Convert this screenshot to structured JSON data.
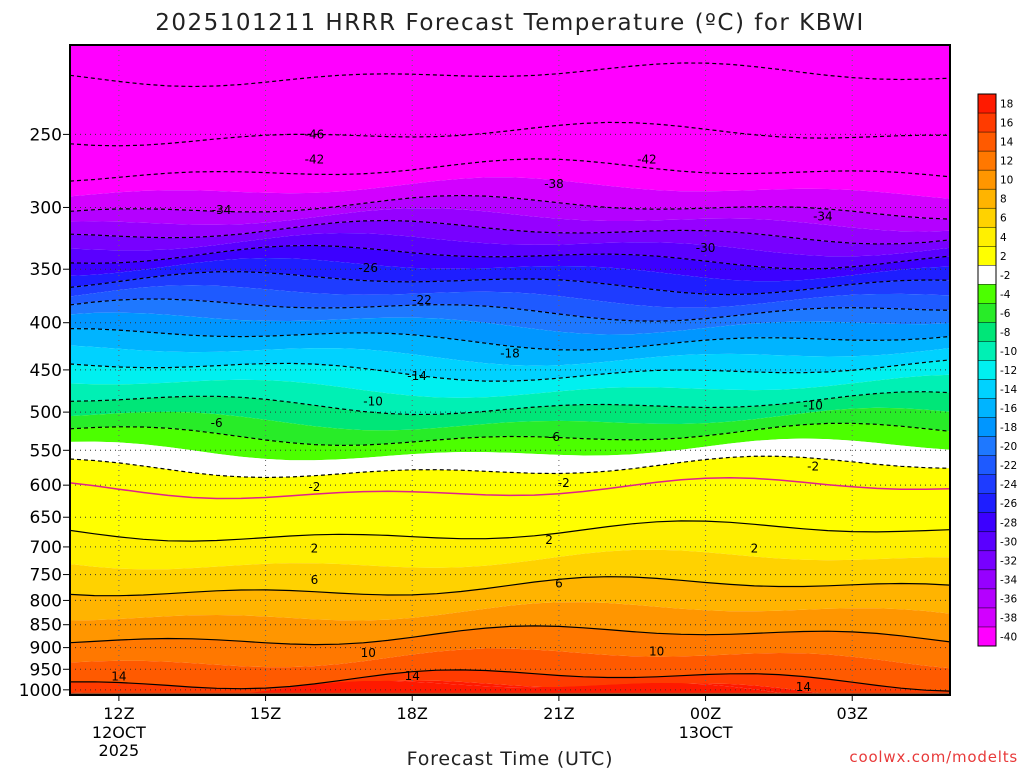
{
  "chart_data": {
    "type": "heatmap",
    "title": "2025101211 HRRR Forecast Temperature (ºC) for KBWI",
    "xlabel": "Forecast Time (UTC)",
    "ylabel": "",
    "credit": "coolwx.com/modelts",
    "x_hours": [
      0,
      3,
      6,
      9,
      12,
      15
    ],
    "x_ticks": [
      {
        "label": "12Z",
        "sub1": "12OCT",
        "sub2": "2025"
      },
      {
        "label": "15Z",
        "sub1": "",
        "sub2": ""
      },
      {
        "label": "18Z",
        "sub1": "",
        "sub2": ""
      },
      {
        "label": "21Z",
        "sub1": "",
        "sub2": ""
      },
      {
        "label": "00Z",
        "sub1": "13OCT",
        "sub2": ""
      },
      {
        "label": "03Z",
        "sub1": "",
        "sub2": ""
      }
    ],
    "y_ticks": [
      250,
      300,
      350,
      400,
      450,
      500,
      550,
      600,
      650,
      700,
      750,
      800,
      850,
      900,
      950,
      1000
    ],
    "y_range_hpa": [
      200,
      1013
    ],
    "y_scale": "log-pressure",
    "x_range_hours": [
      -1,
      17
    ],
    "colorbar": {
      "levels": [
        "18",
        "16",
        "14",
        "12",
        "10",
        "8",
        "6",
        "4",
        "2",
        "-2",
        "-4",
        "-6",
        "-8",
        "-10",
        "-12",
        "-14",
        "-16",
        "-18",
        "-20",
        "-22",
        "-24",
        "-26",
        "-28",
        "-30",
        "-32",
        "-34",
        "-36",
        "-38",
        "-40"
      ],
      "colors": [
        "#ff1a00",
        "#ff3b00",
        "#ff5a00",
        "#ff7800",
        "#ff9600",
        "#ffb400",
        "#ffd200",
        "#fff000",
        "#ffff00",
        "#ffffff",
        "#4cff00",
        "#28ec28",
        "#00e678",
        "#00f0b4",
        "#00f0f0",
        "#00d2ff",
        "#00b4ff",
        "#0096ff",
        "#1e78ff",
        "#1e5aff",
        "#1e3cff",
        "#1e1eff",
        "#3c00ff",
        "#5a00ff",
        "#7800ff",
        "#9600ff",
        "#b400ff",
        "#d200ff",
        "#ff00ff"
      ]
    },
    "profile_hpa": [
      200,
      250,
      300,
      350,
      400,
      450,
      500,
      550,
      600,
      650,
      700,
      750,
      800,
      850,
      900,
      950,
      1000
    ],
    "profile_temp_c": [
      -52,
      -46,
      -38,
      -28,
      -20,
      -14,
      -9,
      -4,
      0,
      1,
      3,
      5,
      7,
      9,
      11,
      13,
      15
    ],
    "contour_labels": [
      {
        "value": "-46",
        "hour": 4.0,
        "hpa": 250
      },
      {
        "value": "-42",
        "hour": 4.0,
        "hpa": 266
      },
      {
        "value": "-42",
        "hour": 10.8,
        "hpa": 266
      },
      {
        "value": "-38",
        "hour": 8.9,
        "hpa": 283
      },
      {
        "value": "-34",
        "hour": 2.1,
        "hpa": 302
      },
      {
        "value": "-34",
        "hour": 14.4,
        "hpa": 307
      },
      {
        "value": "-30",
        "hour": 12.0,
        "hpa": 332
      },
      {
        "value": "-26",
        "hour": 5.1,
        "hpa": 349
      },
      {
        "value": "-22",
        "hour": 6.2,
        "hpa": 378
      },
      {
        "value": "-18",
        "hour": 8.0,
        "hpa": 432
      },
      {
        "value": "-14",
        "hour": 6.1,
        "hpa": 457
      },
      {
        "value": "-10",
        "hour": 5.2,
        "hpa": 487
      },
      {
        "value": "-10",
        "hour": 14.2,
        "hpa": 492
      },
      {
        "value": "-6",
        "hour": 2.0,
        "hpa": 514
      },
      {
        "value": "-6",
        "hour": 8.9,
        "hpa": 532
      },
      {
        "value": "-2",
        "hour": 14.2,
        "hpa": 573
      },
      {
        "value": "-2",
        "hour": 4.0,
        "hpa": 603
      },
      {
        "value": "-2",
        "hour": 9.1,
        "hpa": 597
      },
      {
        "value": "2",
        "hour": 4.0,
        "hpa": 703
      },
      {
        "value": "2",
        "hour": 8.8,
        "hpa": 688
      },
      {
        "value": "2",
        "hour": 13.0,
        "hpa": 703
      },
      {
        "value": "6",
        "hour": 4.0,
        "hpa": 760
      },
      {
        "value": "6",
        "hour": 9.0,
        "hpa": 767
      },
      {
        "value": "10",
        "hour": 5.1,
        "hpa": 912
      },
      {
        "value": "10",
        "hour": 11.0,
        "hpa": 909
      },
      {
        "value": "14",
        "hour": 0.0,
        "hpa": 967
      },
      {
        "value": "14",
        "hour": 6.0,
        "hpa": 966
      },
      {
        "value": "14",
        "hour": 14.0,
        "hpa": 993
      }
    ]
  }
}
